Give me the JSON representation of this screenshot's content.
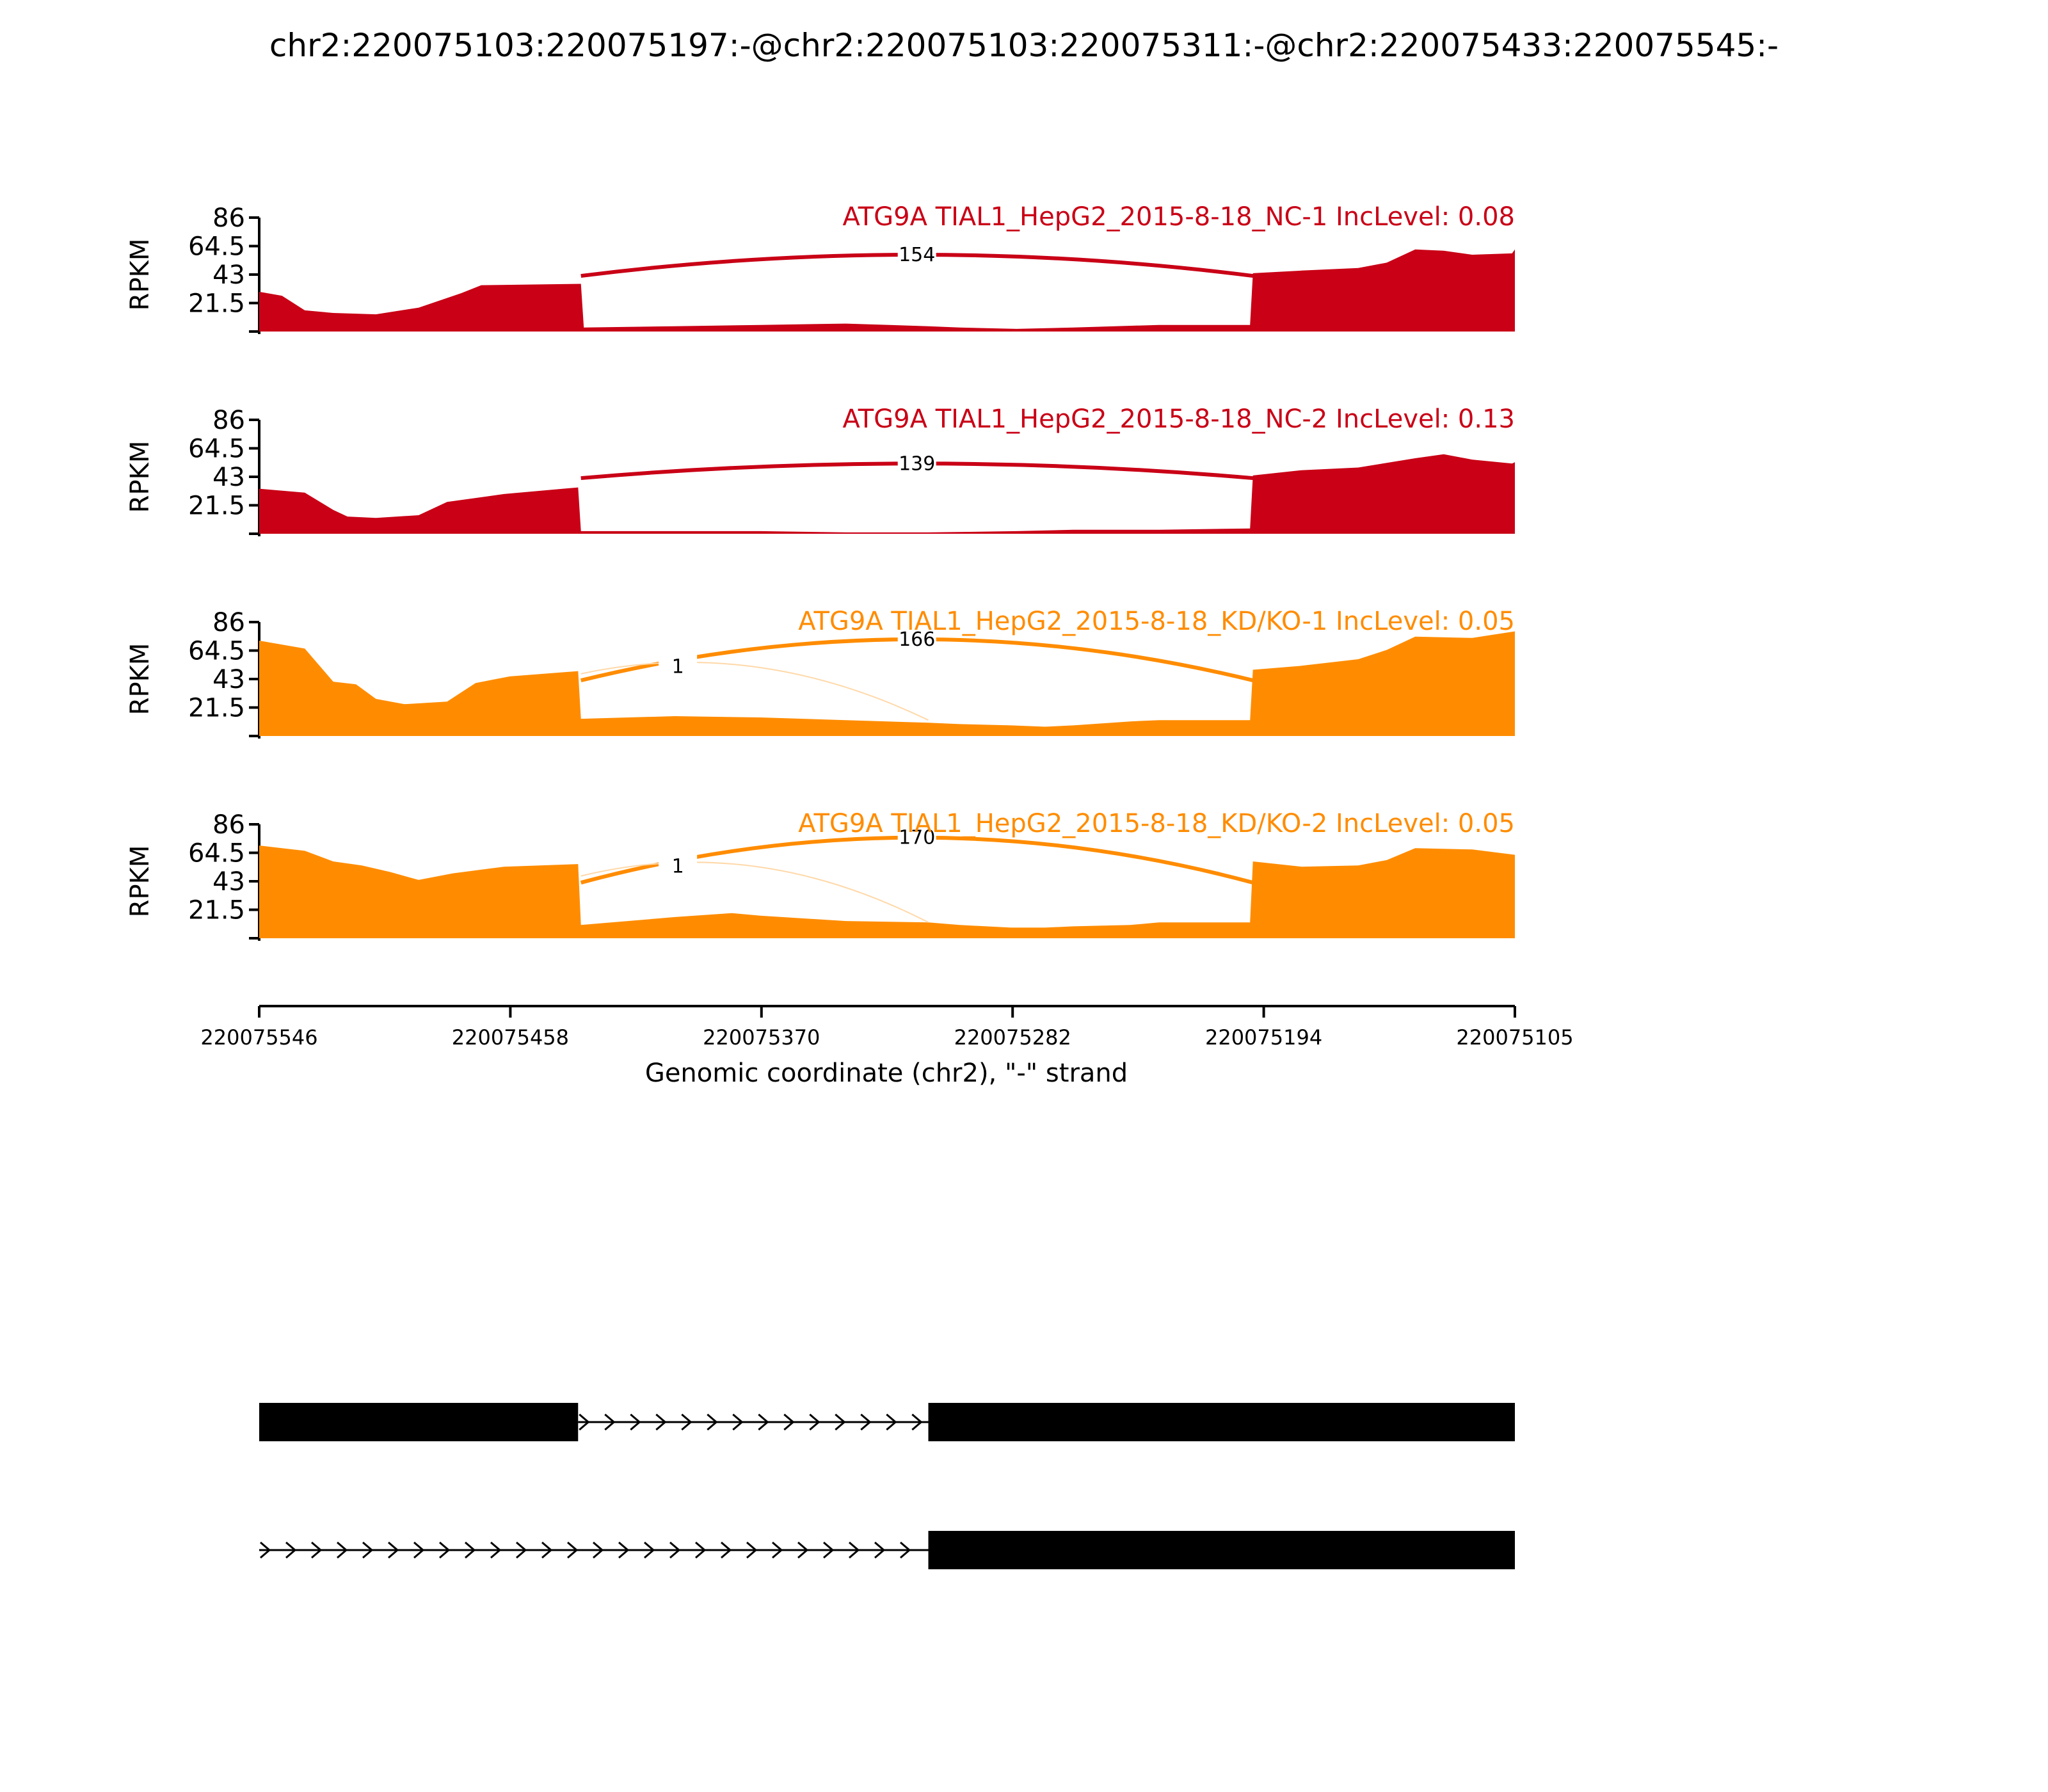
{
  "title": "chr2:220075103:220075197:-@chr2:220075103:220075311:-@chr2:220075433:220075545:-",
  "colors": {
    "nc": "#c90016",
    "kd": "#ff8c00",
    "axis": "#000000",
    "gene": "#000000"
  },
  "chart_data": {
    "type": "area",
    "title": "chr2:220075103:220075197:-@chr2:220075103:220075311:-@chr2:220075433:220075545:-",
    "ylabel": "RPKM",
    "xlabel": "Genomic coordinate (chr2), \"-\" strand",
    "x_range": [
      220075546,
      220075105
    ],
    "x_ticks": [
      "220075546",
      "220075458",
      "220075370",
      "220075282",
      "220075194",
      "220075105"
    ],
    "y_ticks": [
      "86",
      "64.5",
      "43",
      "21.5"
    ],
    "ylim": [
      0,
      86
    ],
    "tracks": [
      {
        "label": "ATG9A TIAL1_HepG2_2015-8-18_NC-1 IncLevel: 0.08",
        "color_key": "nc",
        "coverage": [
          [
            220075546,
            30
          ],
          [
            220075538,
            27
          ],
          [
            220075530,
            16
          ],
          [
            220075520,
            14
          ],
          [
            220075505,
            13
          ],
          [
            220075490,
            18
          ],
          [
            220075475,
            29
          ],
          [
            220075468,
            35
          ],
          [
            220075433,
            36
          ],
          [
            220075432,
            3
          ],
          [
            220075400,
            4
          ],
          [
            220075370,
            5
          ],
          [
            220075340,
            6
          ],
          [
            220075311,
            4
          ],
          [
            220075300,
            3
          ],
          [
            220075280,
            2
          ],
          [
            220075260,
            3
          ],
          [
            220075230,
            5
          ],
          [
            220075198,
            5
          ],
          [
            220075197,
            44
          ],
          [
            220075180,
            46
          ],
          [
            220075160,
            48
          ],
          [
            220075150,
            52
          ],
          [
            220075140,
            62
          ],
          [
            220075130,
            61
          ],
          [
            220075120,
            58
          ],
          [
            220075106,
            59
          ],
          [
            220075105,
            62
          ]
        ],
        "junctions": [
          {
            "count": "154",
            "from": 220075433,
            "to": 220075197,
            "peak": 58
          }
        ]
      },
      {
        "label": "ATG9A TIAL1_HepG2_2015-8-18_NC-2 IncLevel: 0.13",
        "color_key": "nc",
        "coverage": [
          [
            220075546,
            34
          ],
          [
            220075530,
            31
          ],
          [
            220075520,
            18
          ],
          [
            220075515,
            13
          ],
          [
            220075505,
            12
          ],
          [
            220075490,
            14
          ],
          [
            220075480,
            24
          ],
          [
            220075460,
            30
          ],
          [
            220075434,
            35
          ],
          [
            220075433,
            2
          ],
          [
            220075400,
            2
          ],
          [
            220075370,
            2
          ],
          [
            220075340,
            1
          ],
          [
            220075311,
            1
          ],
          [
            220075280,
            2
          ],
          [
            220075260,
            3
          ],
          [
            220075230,
            3
          ],
          [
            220075198,
            4
          ],
          [
            220075197,
            44
          ],
          [
            220075180,
            48
          ],
          [
            220075160,
            50
          ],
          [
            220075140,
            57
          ],
          [
            220075130,
            60
          ],
          [
            220075120,
            56
          ],
          [
            220075106,
            53
          ],
          [
            220075105,
            54
          ]
        ],
        "junctions": [
          {
            "count": "139",
            "from": 220075433,
            "to": 220075197,
            "peak": 53
          }
        ]
      },
      {
        "label": "ATG9A TIAL1_HepG2_2015-8-18_KD/KO-1 IncLevel: 0.05",
        "color_key": "kd",
        "coverage": [
          [
            220075546,
            72
          ],
          [
            220075530,
            66
          ],
          [
            220075520,
            41
          ],
          [
            220075512,
            39
          ],
          [
            220075505,
            28
          ],
          [
            220075495,
            24
          ],
          [
            220075480,
            26
          ],
          [
            220075470,
            40
          ],
          [
            220075458,
            45
          ],
          [
            220075434,
            49
          ],
          [
            220075433,
            13
          ],
          [
            220075400,
            15
          ],
          [
            220075370,
            14
          ],
          [
            220075340,
            12
          ],
          [
            220075311,
            10
          ],
          [
            220075300,
            9
          ],
          [
            220075282,
            8
          ],
          [
            220075270,
            7
          ],
          [
            220075260,
            8
          ],
          [
            220075240,
            11
          ],
          [
            220075230,
            12
          ],
          [
            220075198,
            12
          ],
          [
            220075197,
            50
          ],
          [
            220075180,
            53
          ],
          [
            220075160,
            58
          ],
          [
            220075150,
            65
          ],
          [
            220075140,
            75
          ],
          [
            220075120,
            74
          ],
          [
            220075105,
            79
          ]
        ],
        "junctions": [
          {
            "count": "166",
            "from": 220075433,
            "to": 220075197,
            "peak": 73
          },
          {
            "count": "1",
            "from": 220075433,
            "to": 220075311,
            "peak": 61
          }
        ]
      },
      {
        "label": "ATG9A TIAL1_HepG2_2015-8-18_KD/KO-2 IncLevel: 0.05",
        "color_key": "kd",
        "coverage": [
          [
            220075546,
            70
          ],
          [
            220075530,
            66
          ],
          [
            220075520,
            58
          ],
          [
            220075510,
            55
          ],
          [
            220075500,
            50
          ],
          [
            220075490,
            44
          ],
          [
            220075478,
            49
          ],
          [
            220075460,
            54
          ],
          [
            220075434,
            56
          ],
          [
            220075433,
            10
          ],
          [
            220075400,
            16
          ],
          [
            220075380,
            19
          ],
          [
            220075370,
            17
          ],
          [
            220075340,
            13
          ],
          [
            220075311,
            12
          ],
          [
            220075300,
            10
          ],
          [
            220075282,
            8
          ],
          [
            220075270,
            8
          ],
          [
            220075260,
            9
          ],
          [
            220075240,
            10
          ],
          [
            220075230,
            12
          ],
          [
            220075198,
            12
          ],
          [
            220075197,
            58
          ],
          [
            220075180,
            54
          ],
          [
            220075160,
            55
          ],
          [
            220075150,
            59
          ],
          [
            220075140,
            68
          ],
          [
            220075120,
            67
          ],
          [
            220075105,
            63
          ]
        ],
        "junctions": [
          {
            "count": "170",
            "from": 220075433,
            "to": 220075197,
            "peak": 76
          },
          {
            "count": "1",
            "from": 220075433,
            "to": 220075311,
            "peak": 63
          }
        ]
      }
    ],
    "gene_models": [
      {
        "exons": [
          [
            220075546,
            220075434
          ],
          [
            220075311,
            220075105
          ]
        ],
        "intron": [
          220075434,
          220075311
        ]
      },
      {
        "exons": [
          [
            220075311,
            220075105
          ]
        ],
        "intron": [
          220075546,
          220075311
        ]
      }
    ]
  }
}
